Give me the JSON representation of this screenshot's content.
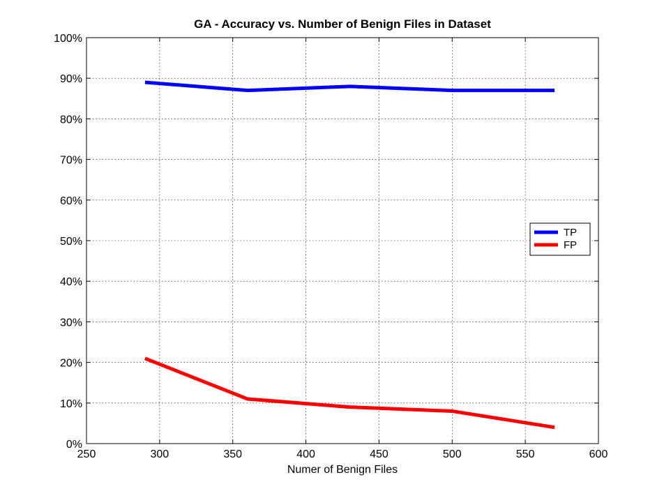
{
  "chart_data": {
    "type": "line",
    "title": "GA - Accuracy vs. Number of Benign Files in Dataset",
    "xlabel": "Numer of Benign Files",
    "ylabel": "",
    "xlim": [
      250,
      600
    ],
    "ylim": [
      0,
      100
    ],
    "xticks": [
      250,
      300,
      350,
      400,
      450,
      500,
      550,
      600
    ],
    "yticks": [
      0,
      10,
      20,
      30,
      40,
      50,
      60,
      70,
      80,
      90,
      100
    ],
    "xtick_labels": [
      "250",
      "300",
      "350",
      "400",
      "450",
      "500",
      "550",
      "600"
    ],
    "ytick_labels": [
      "0%",
      "10%",
      "20%",
      "30%",
      "40%",
      "50%",
      "60%",
      "70%",
      "80%",
      "90%",
      "100%"
    ],
    "grid": true,
    "legend_position": "right",
    "x": [
      290,
      360,
      430,
      500,
      570
    ],
    "series": [
      {
        "name": "TP",
        "color": "#0000ff",
        "values": [
          89,
          87,
          88,
          87,
          87
        ]
      },
      {
        "name": "FP",
        "color": "#ff0000",
        "values": [
          21,
          11,
          9,
          8,
          4
        ]
      }
    ]
  }
}
